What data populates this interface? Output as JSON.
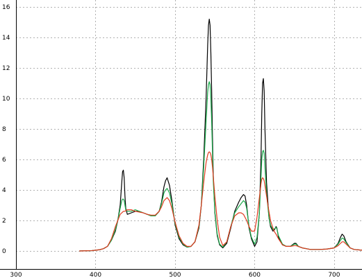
{
  "chart_data": {
    "type": "line",
    "title": "",
    "xlabel": "",
    "ylabel": "",
    "xlim": [
      300,
      735
    ],
    "ylim": [
      0,
      16
    ],
    "grid": true,
    "legend": "none",
    "x_ticks": [
      300,
      400,
      500,
      600,
      700
    ],
    "y_ticks": [
      0,
      2,
      4,
      6,
      8,
      10,
      12,
      14,
      16
    ],
    "x_tick_labels": [
      "300",
      "400",
      "500",
      "600",
      "700"
    ],
    "y_tick_labels": [
      "0",
      "2",
      "4",
      "6",
      "8",
      "10",
      "12",
      "14",
      "16"
    ],
    "series": [
      {
        "color": "#000000",
        "x": [
          380,
          395,
          400,
          405,
          410,
          415,
          420,
          425,
          428,
          431,
          433,
          434,
          435,
          436,
          437,
          438,
          440,
          445,
          450,
          455,
          460,
          465,
          470,
          475,
          480,
          483,
          486,
          488,
          490,
          493,
          496,
          500,
          505,
          510,
          515,
          520,
          525,
          530,
          533,
          536,
          539,
          541,
          542,
          543,
          544,
          545,
          546,
          547,
          548,
          550,
          553,
          556,
          560,
          565,
          570,
          575,
          580,
          583,
          586,
          588,
          590,
          593,
          596,
          600,
          603,
          606,
          608,
          609,
          610,
          611,
          612,
          613,
          615,
          618,
          620,
          623,
          625,
          627,
          628,
          630,
          635,
          640,
          645,
          650,
          652,
          655,
          660,
          665,
          670,
          680,
          690,
          700,
          705,
          708,
          710,
          712,
          715,
          720,
          725,
          735
        ],
        "y": [
          0.0,
          0.02,
          0.05,
          0.08,
          0.15,
          0.3,
          0.7,
          1.3,
          2.0,
          3.0,
          4.5,
          5.2,
          5.3,
          4.8,
          3.6,
          2.8,
          2.4,
          2.5,
          2.6,
          2.6,
          2.5,
          2.4,
          2.3,
          2.3,
          2.6,
          3.2,
          4.2,
          4.6,
          4.8,
          4.3,
          3.3,
          1.7,
          0.8,
          0.4,
          0.25,
          0.3,
          0.6,
          1.5,
          3.0,
          6.0,
          10.0,
          13.5,
          14.8,
          15.2,
          14.8,
          13.0,
          10.5,
          7.5,
          5.0,
          2.5,
          1.0,
          0.4,
          0.2,
          0.5,
          1.5,
          2.6,
          3.2,
          3.5,
          3.7,
          3.6,
          3.0,
          1.5,
          0.8,
          0.3,
          0.6,
          2.5,
          6.0,
          9.0,
          11.0,
          11.3,
          10.5,
          8.0,
          4.5,
          2.2,
          1.6,
          1.3,
          1.4,
          1.6,
          1.5,
          0.9,
          0.4,
          0.3,
          0.3,
          0.5,
          0.5,
          0.3,
          0.2,
          0.15,
          0.1,
          0.1,
          0.12,
          0.2,
          0.5,
          0.9,
          1.1,
          1.0,
          0.6,
          0.2,
          0.1,
          0.05
        ]
      },
      {
        "color": "#1aaa4a",
        "x": [
          380,
          395,
          400,
          405,
          410,
          415,
          420,
          425,
          428,
          431,
          433,
          434,
          435,
          436,
          437,
          438,
          440,
          445,
          450,
          455,
          460,
          465,
          470,
          475,
          480,
          483,
          486,
          488,
          490,
          493,
          496,
          500,
          505,
          510,
          515,
          520,
          525,
          530,
          533,
          536,
          539,
          541,
          542,
          543,
          544,
          545,
          546,
          547,
          548,
          550,
          553,
          556,
          560,
          565,
          570,
          575,
          580,
          583,
          586,
          588,
          590,
          593,
          596,
          600,
          603,
          606,
          608,
          609,
          610,
          611,
          612,
          613,
          615,
          618,
          620,
          623,
          625,
          627,
          628,
          630,
          635,
          640,
          645,
          650,
          652,
          655,
          660,
          665,
          670,
          680,
          690,
          700,
          705,
          708,
          710,
          712,
          715,
          720,
          725,
          735
        ],
        "y": [
          0.0,
          0.02,
          0.05,
          0.08,
          0.15,
          0.3,
          0.7,
          1.4,
          2.0,
          2.8,
          3.3,
          3.4,
          3.4,
          3.3,
          3.0,
          2.7,
          2.6,
          2.6,
          2.7,
          2.6,
          2.5,
          2.4,
          2.3,
          2.3,
          2.6,
          3.1,
          3.8,
          4.0,
          4.1,
          3.8,
          3.1,
          1.8,
          0.9,
          0.45,
          0.25,
          0.3,
          0.6,
          1.6,
          3.0,
          5.5,
          8.5,
          10.4,
          10.9,
          11.1,
          10.9,
          10.0,
          8.5,
          6.5,
          4.6,
          2.6,
          1.1,
          0.45,
          0.25,
          0.6,
          1.6,
          2.5,
          2.9,
          3.1,
          3.3,
          3.2,
          2.8,
          1.6,
          0.9,
          0.45,
          0.9,
          2.5,
          4.8,
          6.0,
          6.5,
          6.6,
          6.4,
          5.5,
          3.8,
          2.2,
          1.7,
          1.4,
          1.45,
          1.55,
          1.45,
          1.0,
          0.45,
          0.3,
          0.3,
          0.45,
          0.45,
          0.3,
          0.2,
          0.15,
          0.1,
          0.1,
          0.12,
          0.2,
          0.45,
          0.7,
          0.85,
          0.8,
          0.55,
          0.2,
          0.1,
          0.05
        ]
      },
      {
        "color": "#e03a1e",
        "x": [
          380,
          395,
          400,
          405,
          410,
          415,
          420,
          425,
          428,
          431,
          433,
          434,
          435,
          436,
          437,
          438,
          440,
          445,
          450,
          455,
          460,
          465,
          470,
          475,
          480,
          483,
          486,
          488,
          490,
          493,
          496,
          500,
          505,
          510,
          515,
          520,
          525,
          530,
          533,
          536,
          539,
          541,
          542,
          543,
          544,
          545,
          546,
          547,
          548,
          550,
          553,
          556,
          560,
          565,
          570,
          575,
          580,
          583,
          586,
          588,
          590,
          593,
          596,
          600,
          603,
          606,
          608,
          609,
          610,
          611,
          612,
          613,
          615,
          618,
          620,
          623,
          625,
          627,
          628,
          630,
          635,
          640,
          645,
          650,
          652,
          655,
          660,
          665,
          670,
          680,
          690,
          700,
          705,
          708,
          710,
          712,
          715,
          720,
          725,
          735
        ],
        "y": [
          0.0,
          0.02,
          0.05,
          0.08,
          0.15,
          0.3,
          0.8,
          1.6,
          2.0,
          2.4,
          2.5,
          2.55,
          2.6,
          2.6,
          2.6,
          2.65,
          2.7,
          2.7,
          2.6,
          2.55,
          2.5,
          2.4,
          2.35,
          2.35,
          2.6,
          2.9,
          3.3,
          3.4,
          3.5,
          3.3,
          2.8,
          1.9,
          1.0,
          0.5,
          0.3,
          0.3,
          0.6,
          1.7,
          3.0,
          4.5,
          5.8,
          6.3,
          6.45,
          6.5,
          6.45,
          6.3,
          6.0,
          5.5,
          4.9,
          3.6,
          2.0,
          0.9,
          0.35,
          0.6,
          1.6,
          2.3,
          2.5,
          2.5,
          2.4,
          2.2,
          2.0,
          1.6,
          1.3,
          1.3,
          2.2,
          3.5,
          4.4,
          4.7,
          4.8,
          4.75,
          4.6,
          4.3,
          3.6,
          2.6,
          2.0,
          1.5,
          1.25,
          1.1,
          1.0,
          0.8,
          0.4,
          0.3,
          0.3,
          0.35,
          0.35,
          0.3,
          0.2,
          0.15,
          0.1,
          0.1,
          0.12,
          0.2,
          0.35,
          0.5,
          0.6,
          0.6,
          0.45,
          0.2,
          0.1,
          0.05
        ]
      }
    ]
  }
}
